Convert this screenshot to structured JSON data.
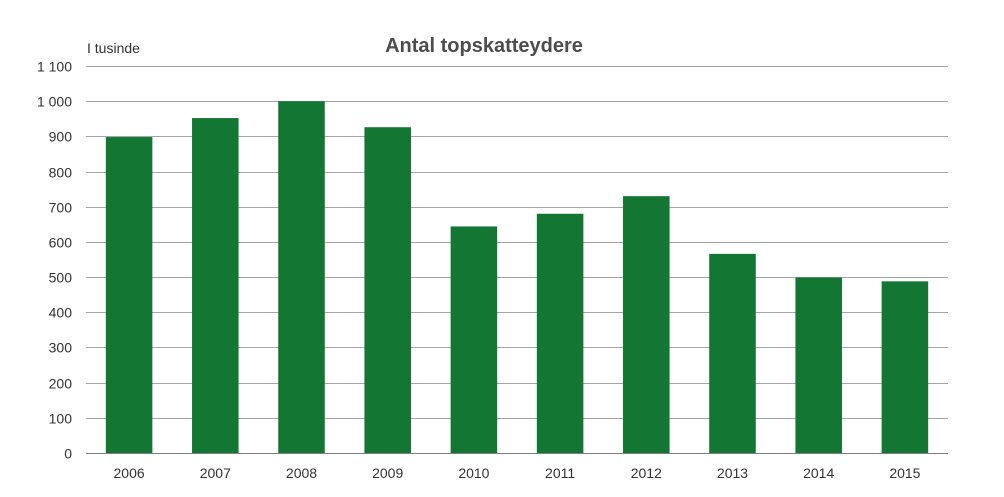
{
  "chart_data": {
    "type": "bar",
    "title": "Antal topskatteydere",
    "unit_label": "I tusinde",
    "xlabel": "",
    "ylabel": "",
    "categories": [
      "2006",
      "2007",
      "2008",
      "2009",
      "2010",
      "2011",
      "2012",
      "2013",
      "2014",
      "2015"
    ],
    "values": [
      898,
      952,
      1000,
      926,
      644,
      680,
      730,
      566,
      499,
      488
    ],
    "ylim": [
      0,
      1100
    ],
    "yticks": [
      0,
      100,
      200,
      300,
      400,
      500,
      600,
      700,
      800,
      900,
      1000,
      1100
    ],
    "ytick_labels": [
      "0",
      "100",
      "200",
      "300",
      "400",
      "500",
      "600",
      "700",
      "800",
      "900",
      "1 000",
      "1 100"
    ],
    "grid": true,
    "legend": "none",
    "bar_color": "#137733"
  }
}
